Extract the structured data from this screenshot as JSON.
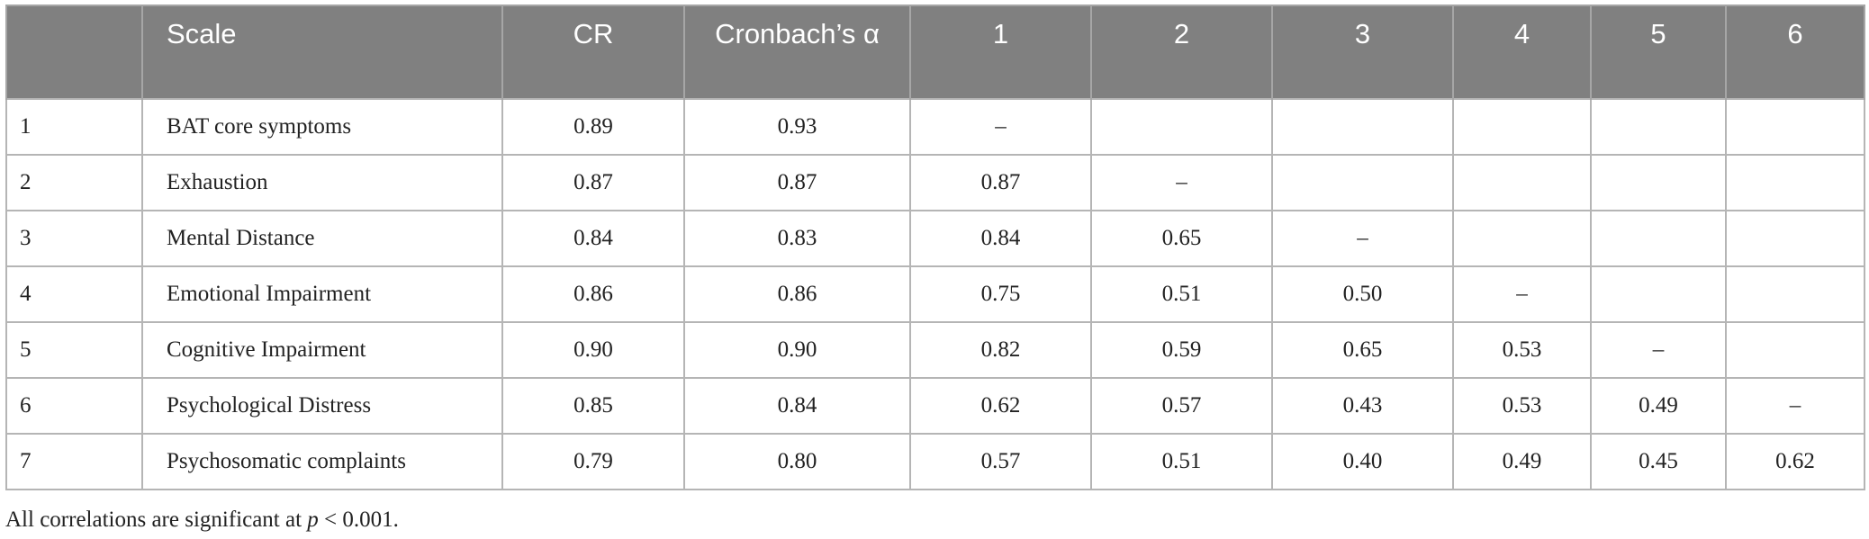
{
  "table": {
    "headers": [
      "",
      "Scale",
      "CR",
      "Cronbach’s α",
      "1",
      "2",
      "3",
      "4",
      "5",
      "6"
    ],
    "rows": [
      {
        "index": "1",
        "scale": "BAT core symptoms",
        "cr": "0.89",
        "alpha": "0.93",
        "c1": "–",
        "c2": "",
        "c3": "",
        "c4": "",
        "c5": "",
        "c6": ""
      },
      {
        "index": "2",
        "scale": "Exhaustion",
        "cr": "0.87",
        "alpha": "0.87",
        "c1": "0.87",
        "c2": "–",
        "c3": "",
        "c4": "",
        "c5": "",
        "c6": ""
      },
      {
        "index": "3",
        "scale": "Mental Distance",
        "cr": "0.84",
        "alpha": "0.83",
        "c1": "0.84",
        "c2": "0.65",
        "c3": "–",
        "c4": "",
        "c5": "",
        "c6": ""
      },
      {
        "index": "4",
        "scale": "Emotional Impairment",
        "cr": "0.86",
        "alpha": "0.86",
        "c1": "0.75",
        "c2": "0.51",
        "c3": "0.50",
        "c4": "–",
        "c5": "",
        "c6": ""
      },
      {
        "index": "5",
        "scale": "Cognitive Impairment",
        "cr": "0.90",
        "alpha": "0.90",
        "c1": "0.82",
        "c2": "0.59",
        "c3": "0.65",
        "c4": "0.53",
        "c5": "–",
        "c6": ""
      },
      {
        "index": "6",
        "scale": "Psychological Distress",
        "cr": "0.85",
        "alpha": "0.84",
        "c1": "0.62",
        "c2": "0.57",
        "c3": "0.43",
        "c4": "0.53",
        "c5": "0.49",
        "c6": "–"
      },
      {
        "index": "7",
        "scale": "Psychosomatic complaints",
        "cr": "0.79",
        "alpha": "0.80",
        "c1": "0.57",
        "c2": "0.51",
        "c3": "0.40",
        "c4": "0.49",
        "c5": "0.45",
        "c6": "0.62"
      }
    ]
  },
  "note": {
    "prefix": "All correlations are significant at ",
    "p_symbol": "p",
    "suffix": " < 0.001."
  }
}
